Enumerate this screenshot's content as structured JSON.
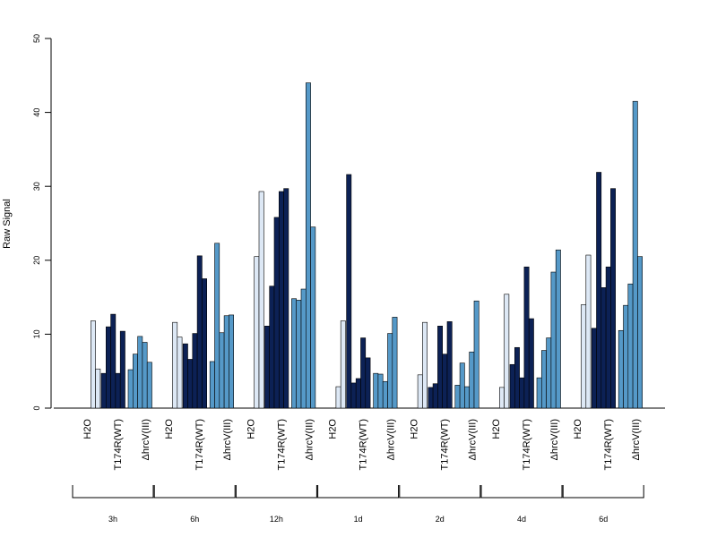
{
  "chart_data": {
    "type": "bar",
    "ylabel": "Raw Signal",
    "ylim": [
      0,
      50
    ],
    "yticks": [
      0,
      10,
      20,
      30,
      40,
      50
    ],
    "grid": false,
    "conditions": [
      {
        "name": "H2O",
        "color": "#dde8f5"
      },
      {
        "name": "T174R(WT)",
        "color": "#0c2155"
      },
      {
        "name": "ΔhrcV(III)",
        "color": "#5599c8"
      }
    ],
    "groups": [
      {
        "time": "3h",
        "values": {
          "H2O": [
            0,
            11.8,
            5.3
          ],
          "T174R(WT)": [
            4.7,
            11.0,
            12.7,
            4.7,
            10.4
          ],
          "ΔhrcV(III)": [
            5.2,
            7.3,
            9.7,
            8.9,
            6.2
          ]
        }
      },
      {
        "time": "6h",
        "values": {
          "H2O": [
            0,
            11.6,
            9.6
          ],
          "T174R(WT)": [
            8.7,
            6.6,
            10.1,
            20.6,
            17.5
          ],
          "ΔhrcV(III)": [
            6.3,
            22.3,
            10.2,
            12.5,
            12.6
          ]
        }
      },
      {
        "time": "12h",
        "values": {
          "H2O": [
            0,
            20.5,
            29.3
          ],
          "T174R(WT)": [
            11.1,
            16.5,
            25.8,
            29.3,
            29.7
          ],
          "ΔhrcV(III)": [
            14.8,
            14.6,
            16.1,
            44.0,
            24.5
          ]
        }
      },
      {
        "time": "1d",
        "values": {
          "H2O": [
            0,
            2.9,
            11.8
          ],
          "T174R(WT)": [
            31.6,
            3.4,
            4.0,
            9.5,
            6.8
          ],
          "ΔhrcV(III)": [
            4.7,
            4.6,
            3.6,
            10.1,
            12.3
          ]
        }
      },
      {
        "time": "2d",
        "values": {
          "H2O": [
            0,
            4.5,
            11.6
          ],
          "T174R(WT)": [
            2.8,
            3.3,
            11.1,
            7.3,
            11.7
          ],
          "ΔhrcV(III)": [
            3.1,
            6.1,
            2.9,
            7.6,
            14.5
          ]
        }
      },
      {
        "time": "4d",
        "values": {
          "H2O": [
            0,
            2.8,
            15.4
          ],
          "T174R(WT)": [
            5.9,
            8.2,
            4.1,
            19.1,
            12.1
          ],
          "ΔhrcV(III)": [
            4.1,
            7.8,
            9.5,
            18.4,
            21.4
          ]
        }
      },
      {
        "time": "6d",
        "values": {
          "H2O": [
            0,
            14.0,
            20.7
          ],
          "T174R(WT)": [
            10.8,
            31.9,
            16.3,
            19.1,
            29.7
          ],
          "ΔhrcV(III)": [
            10.5,
            13.9,
            16.8,
            41.5,
            20.5
          ]
        }
      }
    ]
  }
}
